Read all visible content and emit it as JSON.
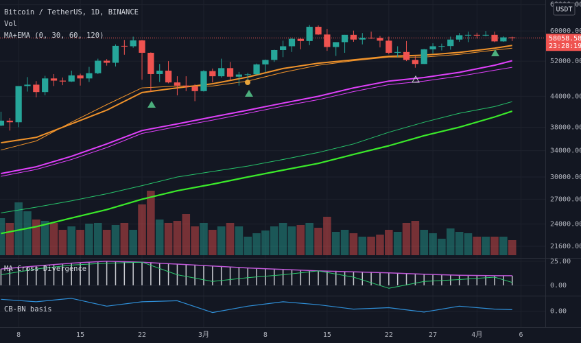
{
  "chart_data": {
    "type": "candlestick",
    "title": "Bitcoin / TetherUS, 1D, BINANCE",
    "volume_label": "Vol",
    "indicator_label": "MA+EMA (0, 30, 60, 120)",
    "currency": "USDT",
    "countdown": "23:28:19",
    "up_color": "#26a69a",
    "down_color": "#ef5350",
    "log": true,
    "grid": true,
    "categories": [
      "02-06",
      "02-07",
      "02-08",
      "02-09",
      "02-10",
      "02-11",
      "02-12",
      "02-13",
      "02-14",
      "02-15",
      "02-16",
      "02-17",
      "02-18",
      "02-19",
      "02-20",
      "02-21",
      "02-22",
      "02-23",
      "02-24",
      "02-25",
      "02-26",
      "02-27",
      "02-28",
      "03-01",
      "03-02",
      "03-03",
      "03-04",
      "03-05",
      "03-06",
      "03-07",
      "03-08",
      "03-09",
      "03-10",
      "03-11",
      "03-12",
      "03-13",
      "03-14",
      "03-15",
      "03-16",
      "03-17",
      "03-18",
      "03-19",
      "03-20",
      "03-21",
      "03-22",
      "03-23",
      "03-24",
      "03-25",
      "03-26",
      "03-27",
      "03-28",
      "03-29",
      "03-30",
      "03-31",
      "04-01",
      "04-02",
      "04-03",
      "04-04",
      "04-05",
      "04-06",
      "04-07",
      "04-08"
    ],
    "open": [
      38300,
      39200,
      38900,
      46200,
      46500,
      44900,
      47900,
      47400,
      47200,
      48600,
      47900,
      49100,
      52100,
      51600,
      55900,
      55800,
      57400,
      54100,
      48900,
      49700,
      47000,
      46300,
      46100,
      45100,
      49600,
      48400,
      50300,
      48300,
      48800,
      48850,
      51200,
      52300,
      54800,
      55800,
      57800,
      57200,
      61200,
      59000,
      55600,
      56900,
      58900,
      57600,
      58100,
      58050,
      57300,
      54100,
      54300,
      52300,
      51300,
      55000,
      55800,
      55850,
      57600,
      58800,
      58900,
      58700,
      58900,
      57100,
      58200,
      null,
      null,
      null
    ],
    "high": [
      40900,
      39700,
      46200,
      48200,
      47300,
      48500,
      48900,
      48100,
      49700,
      49000,
      50600,
      52600,
      52500,
      56300,
      57500,
      58400,
      57500,
      54200,
      51300,
      52000,
      48400,
      48400,
      46600,
      49800,
      50200,
      52600,
      51800,
      49400,
      49200,
      51400,
      52400,
      54900,
      57300,
      58100,
      58000,
      61700,
      61600,
      60600,
      56900,
      58900,
      60100,
      59400,
      59800,
      58600,
      58400,
      55800,
      57200,
      53200,
      55100,
      56600,
      56500,
      58400,
      59400,
      59800,
      59500,
      60000,
      59800,
      58500,
      58400,
      null,
      null,
      null
    ],
    "low": [
      38200,
      37400,
      38000,
      45000,
      43800,
      44200,
      46200,
      46400,
      47100,
      46300,
      47100,
      48900,
      50900,
      50700,
      53600,
      55400,
      47600,
      45000,
      47100,
      46800,
      44200,
      45100,
      43000,
      45000,
      47000,
      48100,
      47500,
      46300,
      47100,
      48800,
      49300,
      51800,
      53000,
      54300,
      55000,
      56100,
      58900,
      54600,
      53300,
      54100,
      57000,
      56300,
      57800,
      55500,
      53700,
      53000,
      52000,
      50400,
      51300,
      53900,
      54700,
      54900,
      57000,
      56900,
      57900,
      58500,
      56900,
      57000,
      57200,
      null,
      null,
      null
    ],
    "close": [
      39200,
      38900,
      46200,
      46500,
      44900,
      47900,
      47400,
      47200,
      48600,
      47900,
      49100,
      52100,
      51600,
      55900,
      55800,
      57400,
      54100,
      48900,
      49700,
      47000,
      46300,
      46100,
      45100,
      49600,
      48400,
      50300,
      48300,
      48800,
      48850,
      51200,
      52300,
      54800,
      55800,
      57800,
      57200,
      61200,
      59000,
      55600,
      56900,
      58900,
      57600,
      58100,
      58050,
      57300,
      54100,
      54300,
      52300,
      51300,
      55000,
      55800,
      55850,
      57600,
      58800,
      58900,
      58700,
      58900,
      57100,
      58200,
      58058.58,
      null,
      null,
      null
    ],
    "volume": [
      54,
      47,
      77,
      64,
      52,
      50,
      47,
      37,
      42,
      37,
      46,
      47,
      37,
      44,
      47,
      37,
      74,
      94,
      52,
      47,
      50,
      60,
      42,
      47,
      37,
      42,
      47,
      42,
      27,
      32,
      36,
      42,
      47,
      42,
      44,
      47,
      40,
      56,
      34,
      37,
      32,
      27,
      27,
      30,
      37,
      34,
      47,
      50,
      37,
      32,
      24,
      39,
      34,
      32,
      27,
      27,
      27,
      27,
      22,
      null,
      null,
      null
    ],
    "vlim": [
      0,
      180
    ],
    "ylim": [
      20500,
      69500
    ],
    "yticks": [
      {
        "value": 68000,
        "label": "68000.00"
      },
      {
        "value": 60000,
        "label": "60000.00"
      },
      {
        "value": 52000,
        "label": "52000.00"
      },
      {
        "value": 44000,
        "label": "44000.00"
      },
      {
        "value": 38000,
        "label": "38000.00"
      },
      {
        "value": 34000,
        "label": "34000.00"
      },
      {
        "value": 30000,
        "label": "30000.00"
      },
      {
        "value": 27000,
        "label": "27000.00"
      },
      {
        "value": 24000,
        "label": "24000.00"
      },
      {
        "value": 21600,
        "label": "21600.00"
      }
    ],
    "xticks": [
      {
        "value": "02-08",
        "label": "8"
      },
      {
        "value": "02-15",
        "label": "15"
      },
      {
        "value": "02-22",
        "label": "22"
      },
      {
        "value": "03-01",
        "label": "3月"
      },
      {
        "value": "03-08",
        "label": "8"
      },
      {
        "value": "03-15",
        "label": "15"
      },
      {
        "value": "03-22",
        "label": "22"
      },
      {
        "value": "03-27",
        "label": "27"
      },
      {
        "value": "04-01",
        "label": "4月"
      },
      {
        "value": "04-06",
        "label": "6"
      }
    ],
    "lines": [
      {
        "color": "#f0932b",
        "width": 2,
        "x": [
          "02-06",
          "02-10",
          "02-14",
          "02-18",
          "02-22",
          "02-26",
          "03-02",
          "03-06",
          "03-10",
          "03-14",
          "03-18",
          "03-22",
          "03-26",
          "03-30",
          "04-03",
          "04-05"
        ],
        "values": [
          35300,
          36200,
          38600,
          41200,
          44800,
          45800,
          46700,
          48200,
          50200,
          51500,
          52300,
          53200,
          53500,
          54200,
          55300,
          56000
        ]
      },
      {
        "color": "#f0932b",
        "width": 1,
        "x": [
          "02-06",
          "02-10",
          "02-14",
          "02-18",
          "02-22",
          "02-26",
          "03-02",
          "03-06",
          "03-10",
          "03-14",
          "03-18",
          "03-22",
          "03-26",
          "03-30",
          "04-03",
          "04-05"
        ],
        "values": [
          34100,
          35600,
          38900,
          42300,
          45800,
          46200,
          46200,
          47300,
          49300,
          51000,
          52100,
          53000,
          53000,
          53700,
          54800,
          55300
        ]
      },
      {
        "color": "#e040fb",
        "width": 2,
        "x": [
          "02-06",
          "02-10",
          "02-14",
          "02-18",
          "02-22",
          "02-26",
          "03-02",
          "03-06",
          "03-10",
          "03-14",
          "03-18",
          "03-22",
          "03-26",
          "03-30",
          "04-03",
          "04-05"
        ],
        "values": [
          30500,
          31500,
          33100,
          35100,
          37400,
          38600,
          39900,
          41200,
          42600,
          44000,
          45800,
          47300,
          48100,
          49300,
          51000,
          52100
        ]
      },
      {
        "color": "#e040fb",
        "width": 1,
        "x": [
          "02-06",
          "02-10",
          "02-14",
          "02-18",
          "02-22",
          "02-26",
          "03-02",
          "03-06",
          "03-10",
          "03-14",
          "03-18",
          "03-22",
          "03-26",
          "03-30",
          "04-03",
          "04-05"
        ],
        "values": [
          30100,
          31100,
          32600,
          34500,
          36900,
          38100,
          39300,
          40600,
          42000,
          43300,
          45000,
          46500,
          47300,
          48400,
          49800,
          50500
        ]
      },
      {
        "color": "#27c46b",
        "width": 1,
        "x": [
          "02-06",
          "02-10",
          "02-14",
          "02-18",
          "02-22",
          "02-26",
          "03-02",
          "03-06",
          "03-10",
          "03-14",
          "03-18",
          "03-22",
          "03-26",
          "03-30",
          "04-03",
          "04-05"
        ],
        "values": [
          25300,
          26000,
          26800,
          27700,
          28800,
          30000,
          30800,
          31600,
          32600,
          33700,
          35100,
          37100,
          38900,
          40600,
          41900,
          42900
        ]
      },
      {
        "color": "#3bea2a",
        "width": 2.2,
        "x": [
          "02-06",
          "02-10",
          "02-14",
          "02-18",
          "02-22",
          "02-26",
          "03-02",
          "03-06",
          "03-10",
          "03-14",
          "03-18",
          "03-22",
          "03-26",
          "03-30",
          "04-03",
          "04-05"
        ],
        "values": [
          22950,
          23700,
          24700,
          25700,
          27000,
          28100,
          29000,
          30000,
          31000,
          32000,
          33400,
          34800,
          36500,
          38000,
          39900,
          41000
        ]
      }
    ],
    "panes": [
      {
        "title": "MA Cross Divergence",
        "ylim": [
          -10,
          27
        ],
        "yticks": [
          {
            "value": 25,
            "label": "25.00"
          },
          {
            "value": 0,
            "label": "0.00"
          }
        ],
        "histogram": {
          "color": "#c8cad0",
          "values": [
            17,
            18,
            19,
            19,
            20,
            21,
            21,
            22,
            23,
            23,
            24,
            24,
            25,
            25,
            25,
            24,
            24,
            24,
            23,
            23,
            22,
            22,
            21,
            21,
            20,
            20,
            19,
            19,
            18,
            18,
            17,
            17,
            16,
            16,
            16,
            15,
            15,
            15,
            15,
            14,
            14,
            14,
            14,
            13,
            13,
            13,
            12,
            12,
            11,
            11,
            11,
            11,
            10,
            10,
            10,
            10,
            10,
            10,
            10,
            null,
            null,
            null
          ]
        },
        "lines": [
          {
            "color": "#c058d8",
            "width": 1.5,
            "x": [
              "02-06",
              "02-10",
              "02-14",
              "02-18",
              "02-22",
              "02-26",
              "03-02",
              "03-06",
              "03-10",
              "03-14",
              "03-18",
              "03-22",
              "03-26",
              "03-30",
              "04-03",
              "04-05"
            ],
            "values": [
              17,
              20,
              23,
              25,
              24,
              22,
              20,
              18,
              16.5,
              15,
              14,
              13,
              11.5,
              10.5,
              10,
              10
            ]
          },
          {
            "color": "#2ecc71",
            "width": 1,
            "x": [
              "02-06",
              "02-10",
              "02-14",
              "02-18",
              "02-22",
              "02-26",
              "03-02",
              "03-06",
              "03-10",
              "03-14",
              "03-18",
              "03-22",
              "03-26",
              "03-30",
              "04-03",
              "04-05"
            ],
            "values": [
              11,
              17,
              21,
              23,
              24,
              11,
              4,
              8,
              11,
              15,
              8.5,
              -3,
              4,
              6,
              8.5,
              3
            ]
          }
        ]
      },
      {
        "title": "CB-BN basis",
        "ylim": [
          -3,
          3
        ],
        "yticks": [
          {
            "value": 0,
            "label": "0.00"
          }
        ],
        "lines": [
          {
            "color": "#2f8fd8",
            "width": 1.2,
            "x": [
              "02-06",
              "02-10",
              "02-14",
              "02-18",
              "02-22",
              "02-26",
              "03-02",
              "03-06",
              "03-10",
              "03-14",
              "03-18",
              "03-22",
              "03-26",
              "03-30",
              "04-03",
              "04-05"
            ],
            "values": [
              2.4,
              1.9,
              2.6,
              1.0,
              1.9,
              2.1,
              -0.3,
              1.0,
              1.9,
              1.3,
              0.4,
              0.7,
              -0.2,
              1.0,
              0.4,
              0.3
            ]
          }
        ]
      }
    ]
  }
}
